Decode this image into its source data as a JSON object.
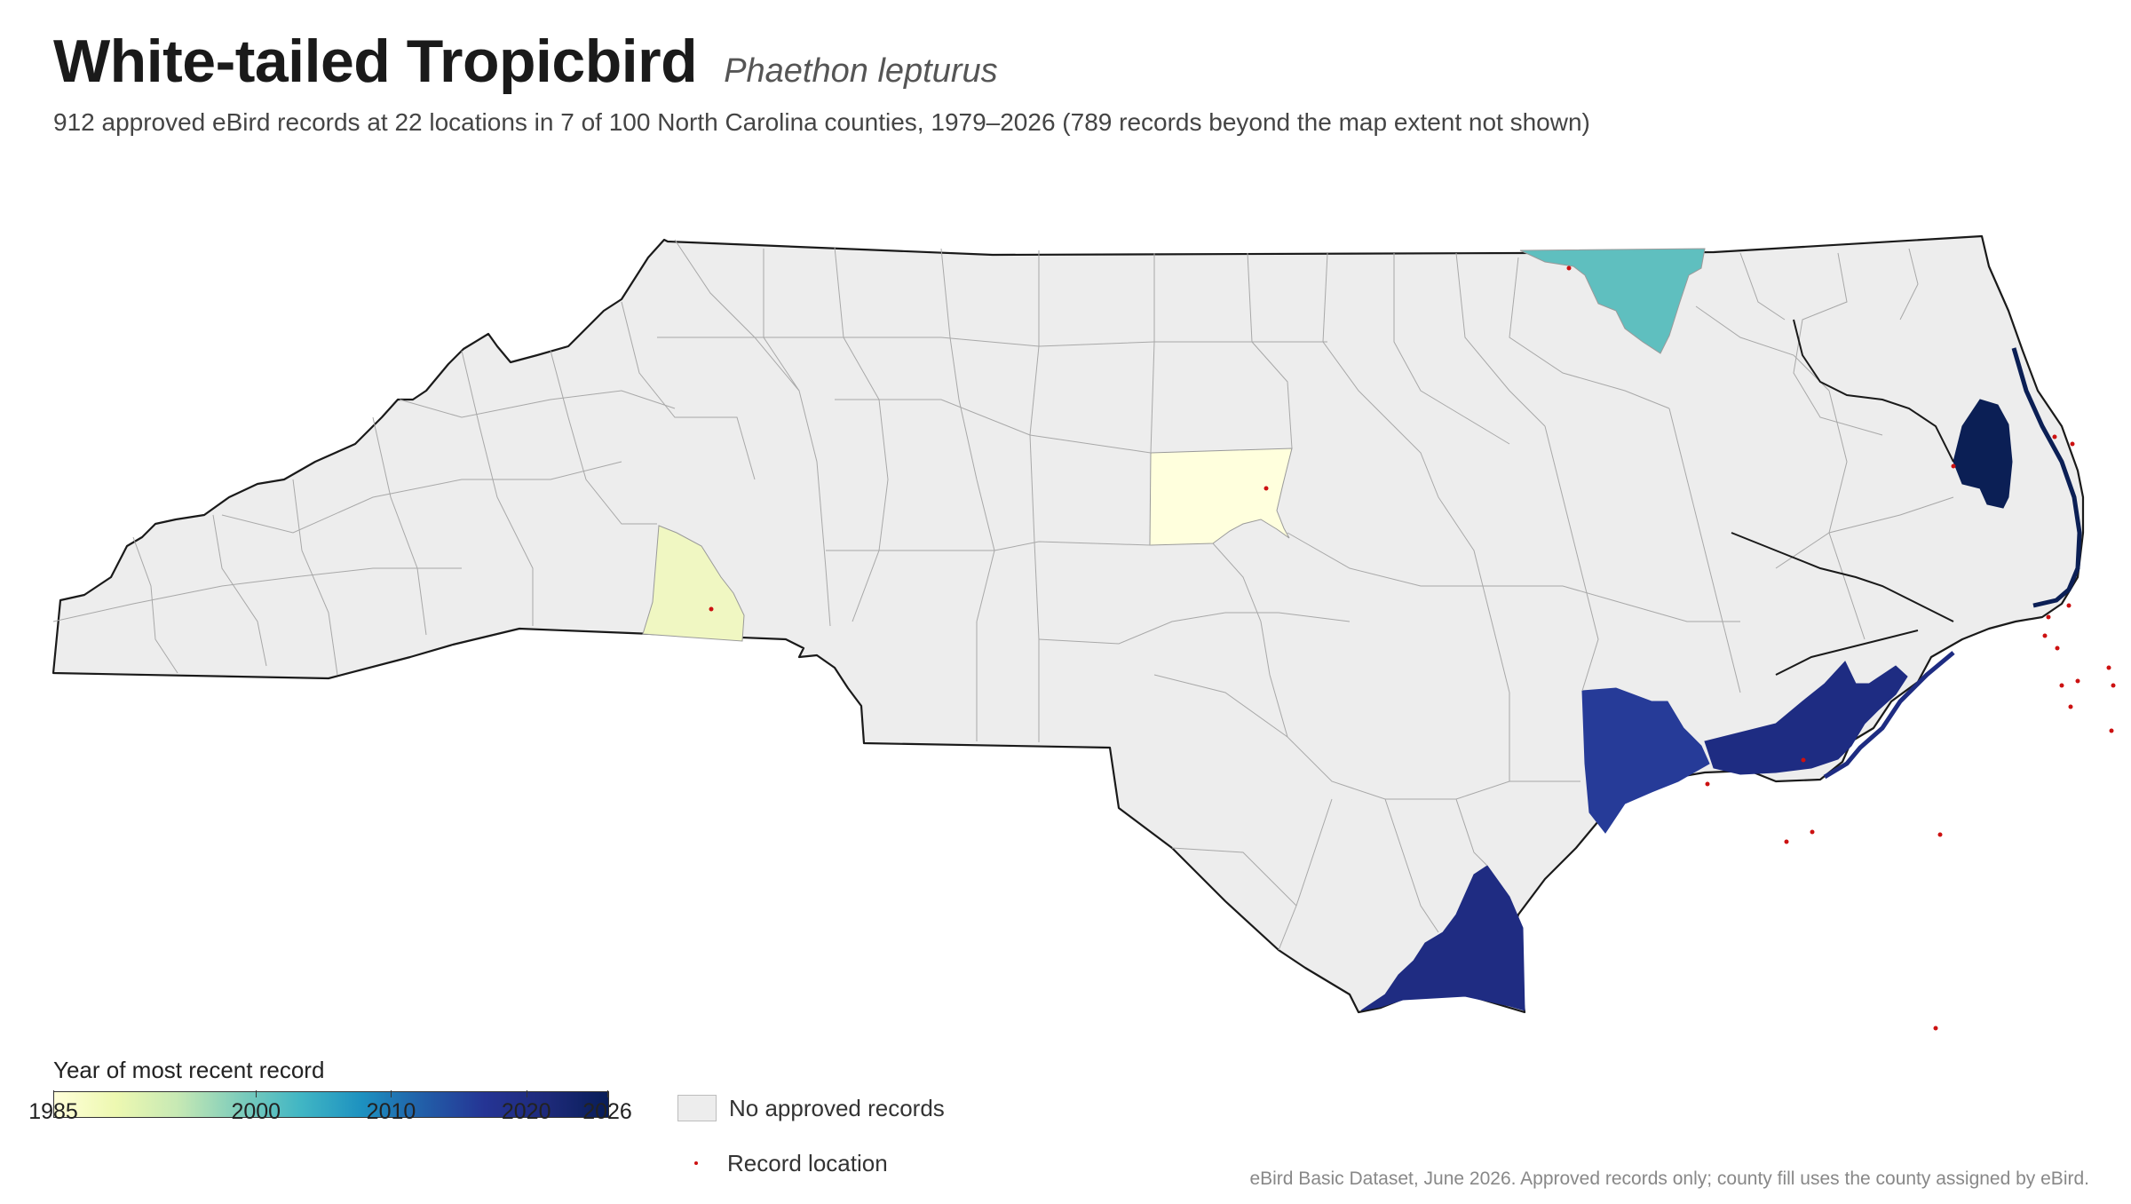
{
  "header": {
    "title": "White-tailed Tropicbird",
    "scientific_name": "Phaethon lepturus",
    "subtitle": "912 approved eBird records at 22 locations in 7 of 100 North Carolina counties, 1979–2026 (789 records beyond the map extent not shown)"
  },
  "legend": {
    "title": "Year of most recent record",
    "scale_min": 1985,
    "scale_max": 2026,
    "ticks": [
      "1985",
      "2000",
      "2010",
      "2020",
      "2026"
    ],
    "no_records_label": "No approved records",
    "record_location_label": "Record location"
  },
  "colors": {
    "no_records": "#ededed",
    "border": "#1a1a1a",
    "county_line": "#a8a8a8",
    "record_dot": "#cc1111",
    "ramp": [
      "#ffffd9",
      "#edf8b1",
      "#c7e9b4",
      "#7fcdbb",
      "#41b6c4",
      "#1d91c0",
      "#225ea8",
      "#253494",
      "#1e2a7a",
      "#081d58"
    ]
  },
  "highlighted_counties": [
    {
      "id": "cleveland-county",
      "last_year": 1988,
      "fill": "#f0f7c2"
    },
    {
      "id": "chatham-county",
      "last_year": 1985,
      "fill": "#ffffdd"
    },
    {
      "id": "northampton-county",
      "last_year": 2006,
      "fill": "#5fbfbf"
    },
    {
      "id": "dare-county",
      "last_year": 2026,
      "fill": "#0b1f55"
    },
    {
      "id": "onslow-county",
      "last_year": 2020,
      "fill": "#263b98"
    },
    {
      "id": "carteret-county",
      "last_year": 2022,
      "fill": "#1e2c82"
    },
    {
      "id": "brunswick-county",
      "last_year": 2022,
      "fill": "#1f2c82"
    }
  ],
  "footer": "eBird Basic Dataset, June 2026. Approved records only; county fill uses the county assigned by eBird."
}
